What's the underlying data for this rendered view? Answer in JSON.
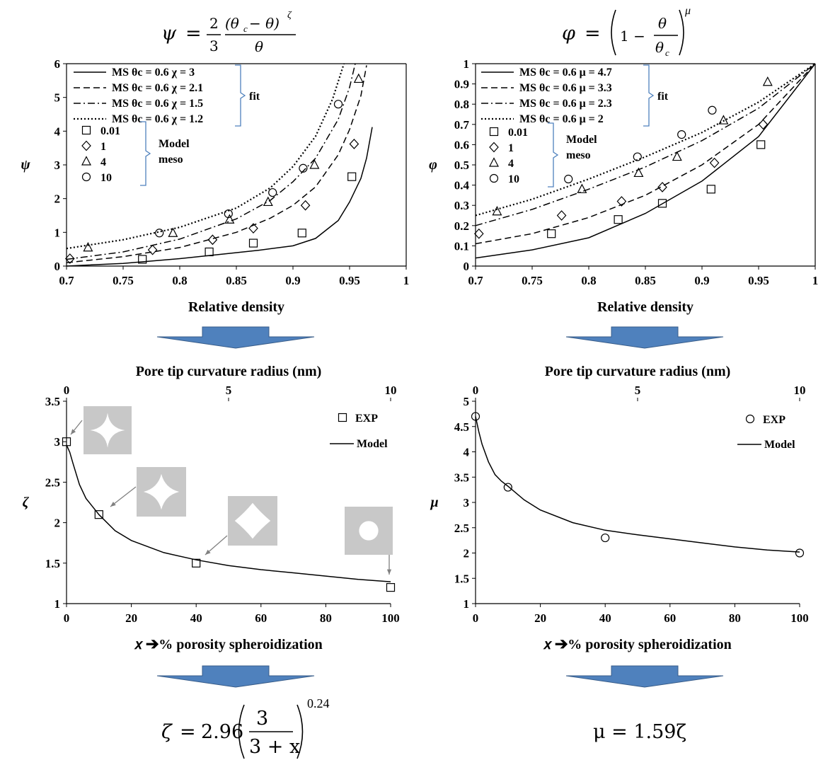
{
  "equations": {
    "psi_top": {
      "lhs": "ψ",
      "eq": "=",
      "num2": "2",
      "den3": "3",
      "num": "(θ",
      "numsub": "c",
      "num_rest": " − θ)",
      "exp": "ζ",
      "den": "θ"
    },
    "phi_top": {
      "lhs": "φ",
      "eq": "=",
      "one": "1 −",
      "num": "θ",
      "den": "θ",
      "densub": "c",
      "exp": "μ"
    },
    "zeta_bottom": {
      "lhs": "ζ",
      "eq": "=",
      "coef": "2.96",
      "num": "3",
      "den": "3 + x",
      "exp": "0.24"
    },
    "mu_bottom": {
      "text": "μ = 1.59ζ"
    }
  },
  "colors": {
    "arrow_fill": "#4f81bd",
    "arrow_stroke": "#385d8a",
    "inset_fill": "#c8c8c8",
    "bracket": "#4f81bd",
    "pointer": "#808080"
  },
  "chart_data": [
    {
      "type": "line",
      "id": "psi_chart",
      "xlabel": "Relative density",
      "ylabel": "ψ",
      "xlim": [
        0.7,
        1
      ],
      "ylim": [
        0,
        6
      ],
      "xticks": [
        "0.7",
        "0.75",
        "0.8",
        "0.85",
        "0.9",
        "0.95",
        "1"
      ],
      "yticks": [
        "0",
        "1",
        "2",
        "3",
        "4",
        "5",
        "6"
      ],
      "series": [
        {
          "name": "MS θc = 0.6 χ = 3",
          "style": "solid",
          "x": [
            0.7,
            0.75,
            0.8,
            0.84,
            0.87,
            0.9,
            0.92,
            0.94,
            0.95,
            0.96,
            0.965,
            0.97
          ],
          "y": [
            0.0,
            0.08,
            0.22,
            0.36,
            0.47,
            0.6,
            0.82,
            1.35,
            1.9,
            2.6,
            3.2,
            4.12
          ]
        },
        {
          "name": "MS θc = 0.6 χ = 2.1",
          "style": "dash",
          "x": [
            0.7,
            0.75,
            0.8,
            0.85,
            0.88,
            0.9,
            0.92,
            0.94,
            0.95,
            0.96,
            0.965
          ],
          "y": [
            0.1,
            0.28,
            0.55,
            1.0,
            1.42,
            1.8,
            2.35,
            3.3,
            4.05,
            5.05,
            5.95
          ]
        },
        {
          "name": "MS θc = 0.6 χ = 1.5",
          "style": "dashdot",
          "x": [
            0.7,
            0.75,
            0.8,
            0.85,
            0.88,
            0.9,
            0.92,
            0.94,
            0.95,
            0.955
          ],
          "y": [
            0.2,
            0.42,
            0.8,
            1.4,
            1.95,
            2.5,
            3.2,
            4.35,
            5.3,
            6.0
          ]
        },
        {
          "name": "MS θc = 0.6 χ = 1.2",
          "style": "dot",
          "x": [
            0.7,
            0.75,
            0.8,
            0.85,
            0.88,
            0.9,
            0.92,
            0.935,
            0.945
          ],
          "y": [
            0.52,
            0.78,
            1.15,
            1.72,
            2.32,
            2.95,
            3.85,
            4.95,
            6.0
          ]
        }
      ],
      "points": [
        {
          "name": "0.01",
          "marker": "square",
          "x": [
            0.767,
            0.826,
            0.865,
            0.908,
            0.952
          ],
          "y": [
            0.2,
            0.42,
            0.68,
            0.98,
            2.65
          ]
        },
        {
          "name": "1",
          "marker": "diamond",
          "x": [
            0.703,
            0.776,
            0.829,
            0.865,
            0.911,
            0.954
          ],
          "y": [
            0.22,
            0.48,
            0.78,
            1.12,
            1.8,
            3.62
          ]
        },
        {
          "name": "4",
          "marker": "triangle",
          "x": [
            0.719,
            0.794,
            0.844,
            0.878,
            0.919,
            0.958
          ],
          "y": [
            0.55,
            0.98,
            1.38,
            1.9,
            3.0,
            5.55
          ]
        },
        {
          "name": "10",
          "marker": "circle",
          "x": [
            0.782,
            0.843,
            0.882,
            0.909,
            0.94
          ],
          "y": [
            0.98,
            1.55,
            2.18,
            2.9,
            4.8
          ]
        }
      ],
      "legend_groups": {
        "fit": "fit",
        "model_1": "Model",
        "model_2": "meso"
      }
    },
    {
      "type": "line",
      "id": "phi_chart",
      "xlabel": "Relative density",
      "ylabel": "φ",
      "xlim": [
        0.7,
        1
      ],
      "ylim": [
        0,
        1
      ],
      "xticks": [
        "0.7",
        "0.75",
        "0.8",
        "0.85",
        "0.9",
        "0.95",
        "1"
      ],
      "yticks": [
        "0",
        "0.1",
        "0.2",
        "0.3",
        "0.4",
        "0.5",
        "0.6",
        "0.7",
        "0.8",
        "0.9",
        "1"
      ],
      "series": [
        {
          "name": "MS θc = 0.6 μ = 4.7",
          "style": "solid",
          "x": [
            0.7,
            0.75,
            0.8,
            0.85,
            0.9,
            0.95,
            1.0
          ],
          "y": [
            0.04,
            0.08,
            0.14,
            0.26,
            0.42,
            0.64,
            1.0
          ]
        },
        {
          "name": "MS θc = 0.6 μ = 3.3",
          "style": "dash",
          "x": [
            0.7,
            0.75,
            0.8,
            0.85,
            0.9,
            0.95,
            1.0
          ],
          "y": [
            0.11,
            0.16,
            0.24,
            0.35,
            0.5,
            0.7,
            1.0
          ]
        },
        {
          "name": "MS θc = 0.6 μ = 2.3",
          "style": "dashdot",
          "x": [
            0.7,
            0.75,
            0.8,
            0.85,
            0.9,
            0.95,
            1.0
          ],
          "y": [
            0.2,
            0.28,
            0.38,
            0.49,
            0.62,
            0.78,
            1.0
          ]
        },
        {
          "name": "MS θc = 0.6 μ = 2",
          "style": "dot",
          "x": [
            0.7,
            0.75,
            0.8,
            0.85,
            0.9,
            0.95,
            1.0
          ],
          "y": [
            0.25,
            0.33,
            0.43,
            0.54,
            0.66,
            0.81,
            1.0
          ]
        }
      ],
      "points": [
        {
          "name": "0.01",
          "marker": "square",
          "x": [
            0.767,
            0.826,
            0.865,
            0.908,
            0.952
          ],
          "y": [
            0.16,
            0.23,
            0.31,
            0.38,
            0.6
          ]
        },
        {
          "name": "1",
          "marker": "diamond",
          "x": [
            0.703,
            0.776,
            0.829,
            0.865,
            0.911,
            0.954
          ],
          "y": [
            0.16,
            0.25,
            0.32,
            0.39,
            0.51,
            0.7
          ]
        },
        {
          "name": "4",
          "marker": "triangle",
          "x": [
            0.719,
            0.794,
            0.844,
            0.878,
            0.919,
            0.958
          ],
          "y": [
            0.27,
            0.38,
            0.46,
            0.54,
            0.72,
            0.91
          ]
        },
        {
          "name": "10",
          "marker": "circle",
          "x": [
            0.782,
            0.843,
            0.882,
            0.909
          ],
          "y": [
            0.43,
            0.54,
            0.65,
            0.77
          ]
        }
      ],
      "legend_groups": {
        "fit": "fit",
        "model_1": "Model",
        "model_2": "meso"
      }
    },
    {
      "type": "line",
      "id": "zeta_chart",
      "xlabel": "𝑥 ➔% porosity spheroidization",
      "x2label": "Pore tip curvature radius (nm)",
      "ylabel": "ζ",
      "xlim": [
        0,
        100
      ],
      "ylim": [
        1,
        3.5
      ],
      "x2lim": [
        0,
        10
      ],
      "xticks": [
        "0",
        "20",
        "40",
        "60",
        "80",
        "100"
      ],
      "x2ticks": [
        "0",
        "5",
        "10"
      ],
      "yticks": [
        "1",
        "1.5",
        "2",
        "2.5",
        "3",
        "3.5"
      ],
      "series": [
        {
          "name": "Model",
          "style": "solid",
          "x": [
            0,
            1,
            2,
            4,
            6,
            8,
            10,
            15,
            20,
            30,
            40,
            50,
            60,
            70,
            80,
            90,
            100
          ],
          "y": [
            2.96,
            2.87,
            2.73,
            2.47,
            2.3,
            2.2,
            2.1,
            1.9,
            1.78,
            1.63,
            1.54,
            1.47,
            1.42,
            1.38,
            1.34,
            1.3,
            1.27
          ]
        }
      ],
      "points": [
        {
          "name": "EXP",
          "marker": "square",
          "x": [
            0,
            10,
            40,
            100
          ],
          "y": [
            3.0,
            2.1,
            1.5,
            1.2
          ]
        }
      ]
    },
    {
      "type": "line",
      "id": "mu_chart",
      "xlabel": "𝑥 ➔% porosity spheroidization",
      "x2label": "Pore tip curvature radius (nm)",
      "ylabel": "μ",
      "xlim": [
        0,
        100
      ],
      "ylim": [
        1,
        5
      ],
      "x2lim": [
        0,
        10
      ],
      "xticks": [
        "0",
        "20",
        "40",
        "60",
        "80",
        "100"
      ],
      "x2ticks": [
        "0",
        "5",
        "10"
      ],
      "yticks": [
        "1",
        "1.5",
        "2",
        "2.5",
        "3",
        "3.5",
        "4",
        "4.5",
        "5"
      ],
      "series": [
        {
          "name": "Model",
          "style": "solid",
          "x": [
            0,
            1,
            2,
            4,
            6,
            8,
            10,
            15,
            20,
            30,
            40,
            50,
            60,
            70,
            80,
            90,
            100
          ],
          "y": [
            4.7,
            4.4,
            4.15,
            3.8,
            3.55,
            3.42,
            3.32,
            3.05,
            2.85,
            2.6,
            2.45,
            2.36,
            2.28,
            2.2,
            2.12,
            2.06,
            2.02
          ]
        }
      ],
      "points": [
        {
          "name": "EXP",
          "marker": "circle",
          "x": [
            0,
            10,
            40,
            100
          ],
          "y": [
            4.7,
            3.3,
            2.3,
            2.0
          ]
        }
      ]
    }
  ]
}
